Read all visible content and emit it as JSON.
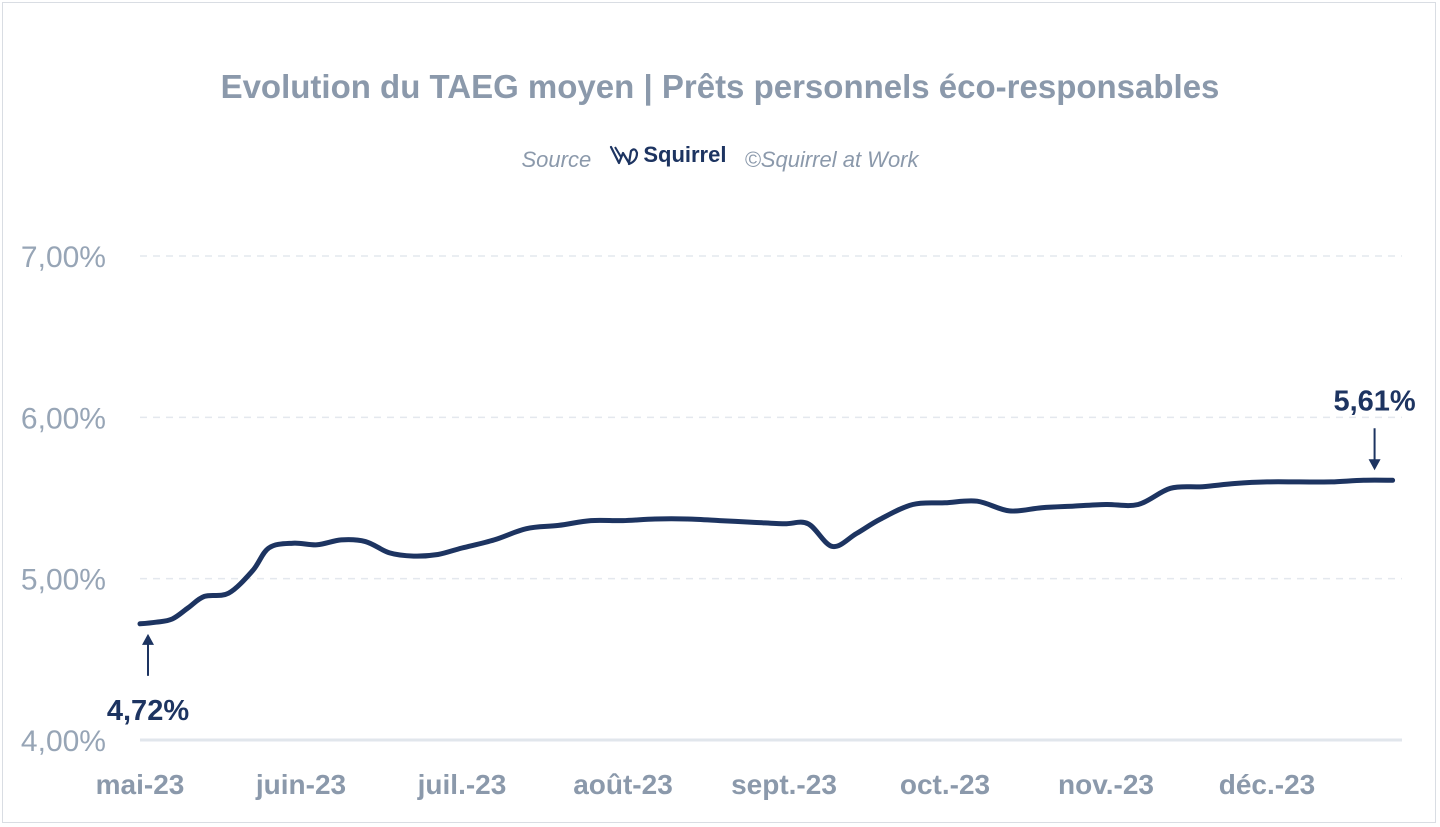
{
  "chart_data": {
    "type": "line",
    "title": "Evolution du TAEG moyen | Prêts personnels éco-responsables",
    "source_label": "Source",
    "source_brand": "Squirrel",
    "copyright": "©Squirrel at Work",
    "xlabel": "",
    "ylabel": "",
    "ylim": [
      4.0,
      7.0
    ],
    "y_ticks": [
      4.0,
      5.0,
      6.0,
      7.0
    ],
    "y_tick_labels": [
      "4,00%",
      "5,00%",
      "6,00%",
      "7,00%"
    ],
    "x_tick_labels": [
      "mai-23",
      "juin-23",
      "juil.-23",
      "août-23",
      "sept.-23",
      "oct.-23",
      "nov.-23",
      "déc.-23"
    ],
    "grid": true,
    "series": [
      {
        "name": "TAEG moyen",
        "color": "#1d3461",
        "x": [
          0,
          0.1,
          0.2,
          0.3,
          0.4,
          0.55,
          0.7,
          0.8,
          0.95,
          1.1,
          1.25,
          1.4,
          1.55,
          1.7,
          1.85,
          2.0,
          2.2,
          2.4,
          2.6,
          2.8,
          3.0,
          3.2,
          3.4,
          3.6,
          3.8,
          4.0,
          4.15,
          4.3,
          4.45,
          4.6,
          4.8,
          5.0,
          5.2,
          5.4,
          5.6,
          5.8,
          6.0,
          6.2,
          6.4,
          6.6,
          6.8,
          7.0,
          7.2,
          7.4,
          7.6,
          7.78
        ],
        "values": [
          4.72,
          4.73,
          4.75,
          4.82,
          4.89,
          4.91,
          5.05,
          5.19,
          5.22,
          5.21,
          5.24,
          5.23,
          5.16,
          5.14,
          5.15,
          5.19,
          5.24,
          5.31,
          5.33,
          5.36,
          5.36,
          5.37,
          5.37,
          5.36,
          5.35,
          5.34,
          5.34,
          5.2,
          5.28,
          5.37,
          5.46,
          5.47,
          5.48,
          5.42,
          5.44,
          5.45,
          5.46,
          5.46,
          5.56,
          5.57,
          5.59,
          5.6,
          5.6,
          5.6,
          5.61,
          5.61
        ]
      }
    ],
    "annotations": [
      {
        "label": "4,72%",
        "x": 0,
        "value": 4.72,
        "placement": "below"
      },
      {
        "label": "5,61%",
        "x": 7.78,
        "value": 5.61,
        "placement": "above"
      }
    ]
  }
}
